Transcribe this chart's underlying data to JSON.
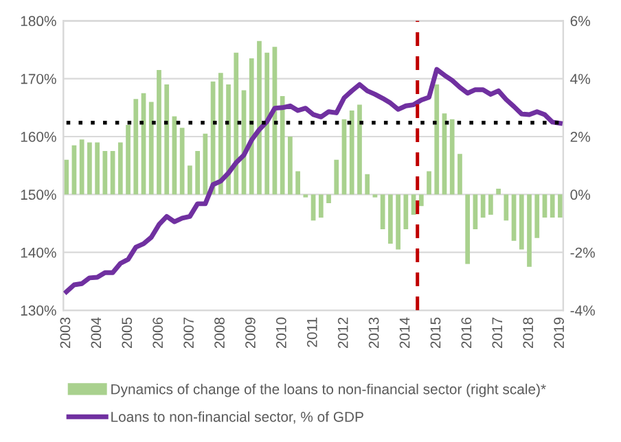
{
  "chart_data": {
    "type": "bar",
    "x": [
      2003.0,
      2003.25,
      2003.5,
      2003.75,
      2004.0,
      2004.25,
      2004.5,
      2004.75,
      2005.0,
      2005.25,
      2005.5,
      2005.75,
      2006.0,
      2006.25,
      2006.5,
      2006.75,
      2007.0,
      2007.25,
      2007.5,
      2007.75,
      2008.0,
      2008.25,
      2008.5,
      2008.75,
      2009.0,
      2009.25,
      2009.5,
      2009.75,
      2010.0,
      2010.25,
      2010.5,
      2010.75,
      2011.0,
      2011.25,
      2011.5,
      2011.75,
      2012.0,
      2012.25,
      2012.5,
      2012.75,
      2013.0,
      2013.25,
      2013.5,
      2013.75,
      2014.0,
      2014.25,
      2014.5,
      2014.75,
      2015.0,
      2015.25,
      2015.5,
      2015.75,
      2016.0,
      2016.25,
      2016.5,
      2016.75,
      2017.0,
      2017.25,
      2017.5,
      2017.75,
      2018.0,
      2018.25,
      2018.5,
      2018.75,
      2019.0
    ],
    "series": [
      {
        "name": "Dynamics of change of the loans to non-financial sector (right scale)*",
        "axis": "y2",
        "color": "#a9d18e",
        "values": [
          1.2,
          1.7,
          1.9,
          1.8,
          1.8,
          1.5,
          1.5,
          1.8,
          2.4,
          3.3,
          3.5,
          3.2,
          4.3,
          3.8,
          2.7,
          2.3,
          1.0,
          1.5,
          2.1,
          3.9,
          4.2,
          3.8,
          4.9,
          3.6,
          4.7,
          5.3,
          4.9,
          5.1,
          3.4,
          2.0,
          0.8,
          -0.1,
          -0.9,
          -0.8,
          -0.3,
          1.2,
          2.6,
          2.9,
          3.1,
          0.7,
          -0.1,
          -1.2,
          -1.7,
          -1.9,
          -1.2,
          -0.7,
          -0.4,
          0.8,
          3.8,
          2.8,
          2.6,
          1.4,
          -2.4,
          -1.2,
          -0.8,
          -0.7,
          0.2,
          -0.9,
          -1.6,
          -1.9,
          -2.5,
          -1.5,
          -0.8,
          -0.8,
          -0.8
        ]
      },
      {
        "name": "Loans to non-financial sector, % of GDP",
        "type": "line",
        "color": "#7030a0",
        "values": [
          133.2,
          134.4,
          134.6,
          135.6,
          135.7,
          136.5,
          136.5,
          138.1,
          138.8,
          140.9,
          141.5,
          142.6,
          144.8,
          146.2,
          145.3,
          145.9,
          146.2,
          148.4,
          148.4,
          151.7,
          152.3,
          153.7,
          155.5,
          156.8,
          159.4,
          161.2,
          162.6,
          164.9,
          165.0,
          165.3,
          164.5,
          164.9,
          163.8,
          163.4,
          164.3,
          164.1,
          166.7,
          167.9,
          169.0,
          167.9,
          167.3,
          166.6,
          165.8,
          164.7,
          165.3,
          165.5,
          166.3,
          166.8,
          171.6,
          170.6,
          169.7,
          168.5,
          167.5,
          168.1,
          168.1,
          167.3,
          167.9,
          166.4,
          165.2,
          163.9,
          163.8,
          164.3,
          163.8,
          162.5,
          162.3
        ]
      }
    ],
    "xlim": [
      2002.9,
      2019.1
    ],
    "xticks": [
      2003,
      2004,
      2005,
      2006,
      2007,
      2008,
      2009,
      2010,
      2011,
      2012,
      2013,
      2014,
      2015,
      2016,
      2017,
      2018,
      2019
    ],
    "ylim": [
      130,
      180
    ],
    "yticks": [
      {
        "value": 130,
        "label": "130%"
      },
      {
        "value": 140,
        "label": "140%"
      },
      {
        "value": 150,
        "label": "150%"
      },
      {
        "value": 160,
        "label": "160%"
      },
      {
        "value": 170,
        "label": "170%"
      },
      {
        "value": 180,
        "label": "180%"
      }
    ],
    "y2lim": [
      -4,
      6
    ],
    "y2ticks": [
      {
        "value": -4,
        "label": "-4%"
      },
      {
        "value": -2,
        "label": "-2%"
      },
      {
        "value": 0,
        "label": "0%"
      },
      {
        "value": 2,
        "label": "2%"
      },
      {
        "value": 4,
        "label": "4%"
      },
      {
        "value": 6,
        "label": "6%"
      }
    ],
    "ref_lines": [
      {
        "axis": "y",
        "value": 162.4,
        "color": "#000000",
        "line_style": "dotted"
      },
      {
        "axis": "x",
        "value": 2014.375,
        "color": "#c00000",
        "line_style": "dashed"
      }
    ],
    "grid": "y",
    "legend": "bottom"
  }
}
